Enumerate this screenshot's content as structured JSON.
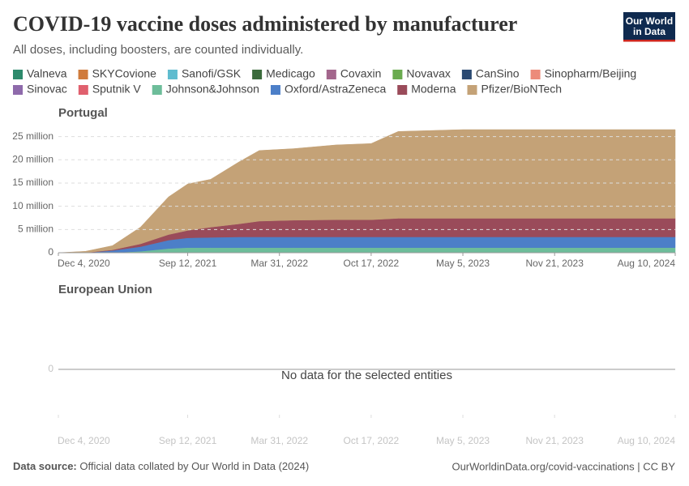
{
  "title": "COVID-19 vaccine doses administered by manufacturer",
  "subtitle": "All doses, including boosters, are counted individually.",
  "logo": [
    "Our World",
    "in Data"
  ],
  "source": {
    "label": "Data source:",
    "text": "Official data collated by Our World in Data (2024)"
  },
  "footer_right": "OurWorldinData.org/covid-vaccinations | CC BY",
  "chart_data": [
    {
      "type": "area",
      "stacked": true,
      "grid": true,
      "title": "Portugal",
      "x": [
        "2020-12-04",
        "2021-02-01",
        "2021-04-01",
        "2021-06-01",
        "2021-08-01",
        "2021-09-12",
        "2021-11-01",
        "2022-01-01",
        "2022-02-15",
        "2022-05-01",
        "2022-08-01",
        "2022-10-17",
        "2022-12-15",
        "2023-05-05",
        "2024-08-10"
      ],
      "xlim": [
        "2020-12-04",
        "2024-08-10"
      ],
      "xticks": [
        {
          "value": "2020-12-04",
          "label": "Dec 4, 2020"
        },
        {
          "value": "2021-09-12",
          "label": "Sep 12, 2021"
        },
        {
          "value": "2022-03-31",
          "label": "Mar 31, 2022"
        },
        {
          "value": "2022-10-17",
          "label": "Oct 17, 2022"
        },
        {
          "value": "2023-05-05",
          "label": "May 5, 2023"
        },
        {
          "value": "2023-11-21",
          "label": "Nov 21, 2023"
        },
        {
          "value": "2024-08-10",
          "label": "Aug 10, 2024"
        }
      ],
      "ylim": [
        0,
        26500000
      ],
      "yticks": [
        0,
        {
          "value": 5000000,
          "label": "5 million"
        },
        {
          "value": 10000000,
          "label": "10 million"
        },
        {
          "value": 15000000,
          "label": "15 million"
        },
        {
          "value": 20000000,
          "label": "20 million"
        },
        {
          "value": 25000000,
          "label": "25 million"
        }
      ],
      "series": [
        {
          "name": "Valneva",
          "color": "#2d8a6c",
          "values": [
            null,
            null,
            null,
            null,
            null,
            null,
            null,
            null,
            null,
            null,
            null,
            null,
            null,
            null,
            null
          ]
        },
        {
          "name": "SKYCovione",
          "color": "#d07b3c",
          "values": [
            null,
            null,
            null,
            null,
            null,
            null,
            null,
            null,
            null,
            null,
            null,
            null,
            null,
            null,
            null
          ]
        },
        {
          "name": "Sanofi/GSK",
          "color": "#5fbccf",
          "values": [
            null,
            null,
            null,
            null,
            null,
            null,
            null,
            null,
            null,
            null,
            null,
            null,
            null,
            null,
            null
          ]
        },
        {
          "name": "Medicago",
          "color": "#3b6b3c",
          "values": [
            null,
            null,
            null,
            null,
            null,
            null,
            null,
            null,
            null,
            null,
            null,
            null,
            null,
            null,
            null
          ]
        },
        {
          "name": "Covaxin",
          "color": "#a3668c",
          "values": [
            null,
            null,
            null,
            null,
            null,
            null,
            null,
            null,
            null,
            null,
            null,
            null,
            null,
            null,
            null
          ]
        },
        {
          "name": "Novavax",
          "color": "#6aab4f",
          "values": [
            null,
            null,
            null,
            null,
            null,
            null,
            null,
            null,
            null,
            null,
            null,
            null,
            null,
            null,
            null
          ]
        },
        {
          "name": "CanSino",
          "color": "#2b4a72",
          "values": [
            null,
            null,
            null,
            null,
            null,
            null,
            null,
            null,
            null,
            null,
            null,
            null,
            null,
            null,
            null
          ]
        },
        {
          "name": "Sinopharm/Beijing",
          "color": "#ec8b7a",
          "values": [
            null,
            null,
            null,
            null,
            null,
            null,
            null,
            null,
            null,
            null,
            null,
            null,
            null,
            null,
            null
          ]
        },
        {
          "name": "Sinovac",
          "color": "#8e6aab",
          "values": [
            null,
            null,
            null,
            null,
            null,
            null,
            null,
            null,
            null,
            null,
            null,
            null,
            null,
            null,
            null
          ]
        },
        {
          "name": "Sputnik V",
          "color": "#e0606e",
          "values": [
            null,
            null,
            null,
            null,
            null,
            null,
            null,
            null,
            null,
            null,
            null,
            null,
            null,
            null,
            null
          ]
        },
        {
          "name": "Johnson&Johnson",
          "color": "#6dbd9a",
          "values": [
            0,
            0,
            20000,
            300000,
            900000,
            1100000,
            1100000,
            1100000,
            1100000,
            1100000,
            1100000,
            1100000,
            1100000,
            1100000,
            1100000
          ]
        },
        {
          "name": "Oxford/AstraZeneca",
          "color": "#4c7fc8",
          "values": [
            0,
            0,
            450000,
            1000000,
            1800000,
            2100000,
            2200000,
            2300000,
            2300000,
            2300000,
            2300000,
            2300000,
            2300000,
            2300000,
            2300000
          ]
        },
        {
          "name": "Moderna",
          "color": "#9a4b5a",
          "values": [
            0,
            20000,
            150000,
            600000,
            1200000,
            1600000,
            2200000,
            2800000,
            3400000,
            3600000,
            3700000,
            3700000,
            4000000,
            4000000,
            4000000
          ]
        },
        {
          "name": "Pfizer/BioNTech",
          "color": "#c4a277",
          "values": [
            0,
            280000,
            900000,
            3600000,
            8100000,
            10000000,
            10300000,
            13300000,
            15200000,
            15400000,
            16100000,
            16400000,
            18700000,
            19100000,
            19100000
          ]
        }
      ]
    },
    {
      "type": "area",
      "title": "European Union",
      "message": "No data for the selected entities",
      "xlim": [
        "2020-12-04",
        "2024-08-10"
      ],
      "xticks": [
        {
          "value": "2020-12-04",
          "label": "Dec 4, 2020"
        },
        {
          "value": "2021-09-12",
          "label": "Sep 12, 2021"
        },
        {
          "value": "2022-03-31",
          "label": "Mar 31, 2022"
        },
        {
          "value": "2022-10-17",
          "label": "Oct 17, 2022"
        },
        {
          "value": "2023-05-05",
          "label": "May 5, 2023"
        },
        {
          "value": "2023-11-21",
          "label": "Nov 21, 2023"
        },
        {
          "value": "2024-08-10",
          "label": "Aug 10, 2024"
        }
      ],
      "yticks": [
        0
      ]
    }
  ]
}
